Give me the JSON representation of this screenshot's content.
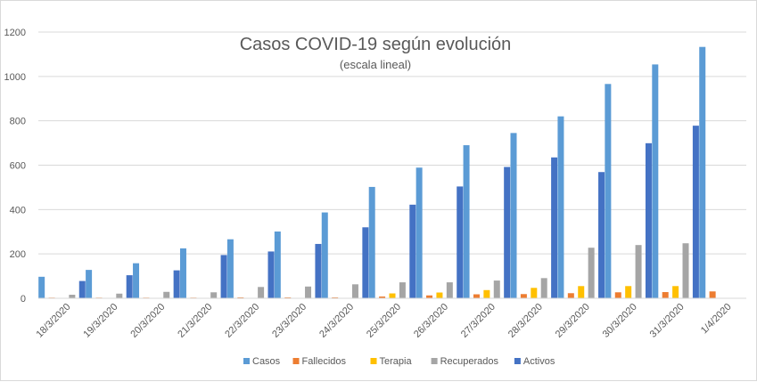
{
  "chart_data": {
    "type": "bar",
    "title": "Casos COVID-19 según evolución",
    "subtitle": "(escala lineal)",
    "xlabel": "",
    "ylabel": "",
    "ylim": [
      0,
      1200
    ],
    "yticks": [
      0,
      200,
      400,
      600,
      800,
      1000,
      1200
    ],
    "grid": true,
    "legend_position": "bottom",
    "categories": [
      "18/3/2020",
      "19/3/2020",
      "20/3/2020",
      "21/3/2020",
      "22/3/2020",
      "23/3/2020",
      "24/3/2020",
      "25/3/2020",
      "26/3/2020",
      "27/3/2020",
      "28/3/2020",
      "29/3/2020",
      "30/3/2020",
      "31/3/2020",
      "1/4/2020"
    ],
    "series": [
      {
        "name": "Casos",
        "color": "#5b9bd5",
        "values": [
          97,
          128,
          158,
          225,
          266,
          301,
          387,
          502,
          589,
          690,
          745,
          820,
          966,
          1054,
          1133
        ]
      },
      {
        "name": "Fallecidos",
        "color": "#ed7d31",
        "values": [
          3,
          3,
          3,
          3,
          4,
          4,
          4,
          8,
          13,
          18,
          19,
          23,
          27,
          28,
          31
        ]
      },
      {
        "name": "Terapia",
        "color": "#ffc000",
        "values": [
          null,
          null,
          null,
          null,
          null,
          null,
          null,
          22,
          26,
          37,
          47,
          55,
          55,
          55,
          null
        ]
      },
      {
        "name": "Recuperados",
        "color": "#a5a5a5",
        "values": [
          16,
          21,
          29,
          27,
          51,
          53,
          63,
          72,
          72,
          80,
          91,
          228,
          240,
          248,
          null
        ]
      },
      {
        "name": "Activos",
        "color": "#4472c4",
        "values": [
          78,
          104,
          126,
          195,
          211,
          245,
          320,
          422,
          504,
          592,
          635,
          569,
          699,
          778,
          null
        ]
      }
    ]
  }
}
